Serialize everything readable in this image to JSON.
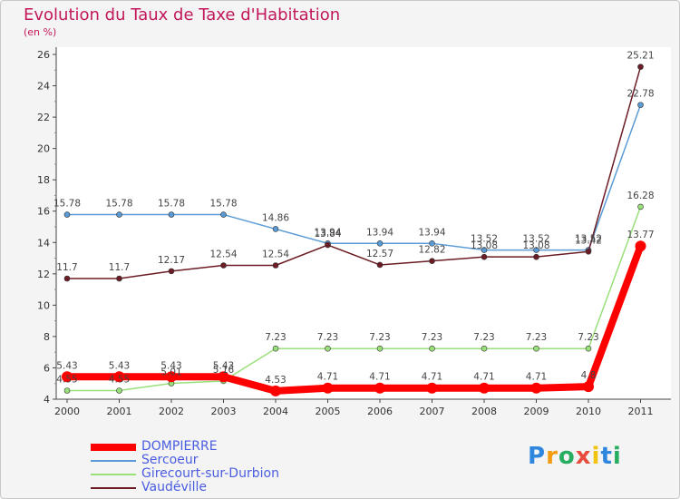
{
  "title": "Evolution du Taux de Taxe d'Habitation",
  "unit_label": "(en %)",
  "brand": {
    "text": "Proxiti",
    "letters": [
      {
        "ch": "P",
        "color": "#2e86de"
      },
      {
        "ch": "r",
        "color": "#f39c12"
      },
      {
        "ch": "o",
        "color": "#27ae60"
      },
      {
        "ch": "x",
        "color": "#e74c3c"
      },
      {
        "ch": "i",
        "color": "#f1c40f"
      },
      {
        "ch": "t",
        "color": "#2e86de"
      },
      {
        "ch": "i",
        "color": "#27ae60"
      }
    ]
  },
  "chart_data": {
    "type": "line",
    "title": "Evolution du Taux de Taxe d'Habitation",
    "ylabel": "(en %)",
    "xlabel": "",
    "x": [
      "2000",
      "2001",
      "2002",
      "2003",
      "2004",
      "2005",
      "2006",
      "2007",
      "2008",
      "2009",
      "2010",
      "2011"
    ],
    "ylim": [
      4,
      26
    ],
    "yticks": [
      4,
      6,
      8,
      10,
      12,
      14,
      16,
      18,
      20,
      22,
      24,
      26
    ],
    "grid": false,
    "legend_position": "bottom-left",
    "series": [
      {
        "name": "DOMPIERRE",
        "color": "#ff0000",
        "values": [
          5.43,
          5.43,
          5.43,
          5.43,
          4.53,
          4.71,
          4.71,
          4.71,
          4.71,
          4.71,
          4.8,
          13.77
        ],
        "labels": [
          "5.43",
          "5.43",
          "5.43",
          "5.43",
          "4.53",
          "4.71",
          "4.71",
          "4.71",
          "4.71",
          "4.71",
          "4.8",
          "13.77"
        ]
      },
      {
        "name": "Sercoeur",
        "color": "#5b9bd5",
        "values": [
          15.78,
          15.78,
          15.78,
          15.78,
          14.86,
          13.94,
          13.94,
          13.94,
          13.52,
          13.52,
          13.52,
          22.78
        ],
        "labels": [
          "15.78",
          "15.78",
          "15.78",
          "15.78",
          "14.86",
          "13.94",
          "13.94",
          "13.94",
          "13.52",
          "13.52",
          "13.52",
          "22.78"
        ]
      },
      {
        "name": "Girecourt-sur-Durbion",
        "color": "#99e07a",
        "values": [
          4.55,
          4.55,
          5.01,
          5.16,
          7.23,
          7.23,
          7.23,
          7.23,
          7.23,
          7.23,
          7.23,
          16.28
        ],
        "labels": [
          "4.55",
          "4.55",
          "5.01",
          "5.16",
          "7.23",
          "7.23",
          "7.23",
          "7.23",
          "7.23",
          "7.23",
          "7.23",
          "16.28"
        ]
      },
      {
        "name": "Vaudéville",
        "color": "#6b1c24",
        "values": [
          11.7,
          11.7,
          12.17,
          12.54,
          12.54,
          13.84,
          12.57,
          12.82,
          13.08,
          13.08,
          13.42,
          25.21
        ],
        "labels": [
          "11.7",
          "11.7",
          "12.17",
          "12.54",
          "12.54",
          "13.84",
          "12.57",
          "12.82",
          "13.08",
          "13.08",
          "13.42",
          "25.21"
        ]
      }
    ]
  }
}
